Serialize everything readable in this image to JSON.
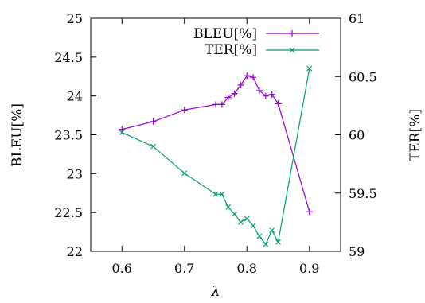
{
  "chart_data": {
    "type": "line",
    "xlabel": "λ",
    "ylabel_left": "BLEU[%]",
    "ylabel_right": "TER[%]",
    "xlim": [
      0.55,
      0.95
    ],
    "ylim_left": [
      22,
      25
    ],
    "ylim_right": [
      59,
      61
    ],
    "x_ticks": [
      "0.6",
      "0.7",
      "0.8",
      "0.9"
    ],
    "y_left_ticks": [
      "22",
      "22.5",
      "23",
      "23.5",
      "24",
      "24.5",
      "25"
    ],
    "y_right_ticks": [
      "59",
      "59.5",
      "60",
      "60.5",
      "61"
    ],
    "legend_position": "top-right",
    "grid": false,
    "series": [
      {
        "name": "BLEU[%]",
        "axis": "left",
        "color": "#9400d3",
        "marker": "plus",
        "points": [
          [
            0.6,
            23.57
          ],
          [
            0.65,
            23.67
          ],
          [
            0.7,
            23.82
          ],
          [
            0.75,
            23.89
          ],
          [
            0.76,
            23.89
          ],
          [
            0.77,
            23.98
          ],
          [
            0.78,
            24.03
          ],
          [
            0.79,
            24.14
          ],
          [
            0.8,
            24.26
          ],
          [
            0.81,
            24.24
          ],
          [
            0.82,
            24.07
          ],
          [
            0.83,
            24.0
          ],
          [
            0.84,
            24.02
          ],
          [
            0.85,
            23.9
          ],
          [
            0.9,
            22.51
          ]
        ]
      },
      {
        "name": "TER[%]",
        "axis": "right",
        "color": "#009e73",
        "marker": "x",
        "points": [
          [
            0.6,
            60.02
          ],
          [
            0.65,
            59.9
          ],
          [
            0.7,
            59.67
          ],
          [
            0.75,
            59.49
          ],
          [
            0.76,
            59.49
          ],
          [
            0.77,
            59.38
          ],
          [
            0.78,
            59.32
          ],
          [
            0.79,
            59.25
          ],
          [
            0.8,
            59.28
          ],
          [
            0.81,
            59.22
          ],
          [
            0.82,
            59.13
          ],
          [
            0.83,
            59.06
          ],
          [
            0.84,
            59.18
          ],
          [
            0.85,
            59.08
          ],
          [
            0.9,
            60.57
          ]
        ]
      }
    ]
  }
}
